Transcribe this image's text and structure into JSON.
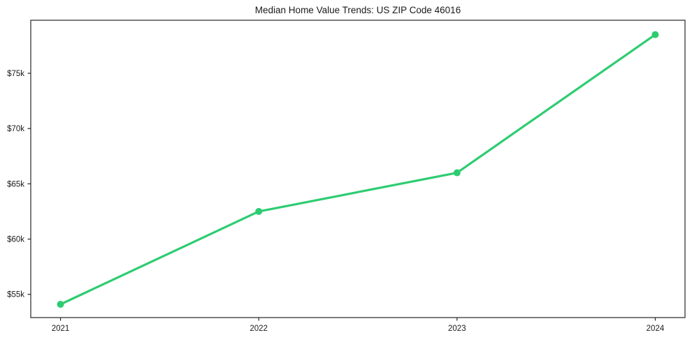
{
  "chart_data": {
    "type": "line",
    "title": "Median Home Value Trends: US ZIP Code 46016",
    "xlabel": "",
    "ylabel": "",
    "x": [
      2021,
      2022,
      2023,
      2024
    ],
    "series": [
      {
        "name": "Median Home Value",
        "values": [
          54100,
          62500,
          66000,
          78500
        ]
      }
    ],
    "xticks": [
      {
        "v": 2021,
        "label": "2021"
      },
      {
        "v": 2022,
        "label": "2022"
      },
      {
        "v": 2023,
        "label": "2023"
      },
      {
        "v": 2024,
        "label": "2024"
      }
    ],
    "yticks": [
      {
        "v": 55000,
        "label": "$55k"
      },
      {
        "v": 60000,
        "label": "$60k"
      },
      {
        "v": 65000,
        "label": "$65k"
      },
      {
        "v": 70000,
        "label": "$70k"
      },
      {
        "v": 75000,
        "label": "$75k"
      }
    ],
    "xlim": [
      2020.85,
      2024.15
    ],
    "ylim": [
      52900,
      79800
    ],
    "grid": false,
    "legend_position": "none",
    "colors": {
      "line": "#2ecc71",
      "marker": "#2ecc71",
      "text": "#1a1a1a",
      "spine": "#262626",
      "background": "#ffffff"
    }
  }
}
